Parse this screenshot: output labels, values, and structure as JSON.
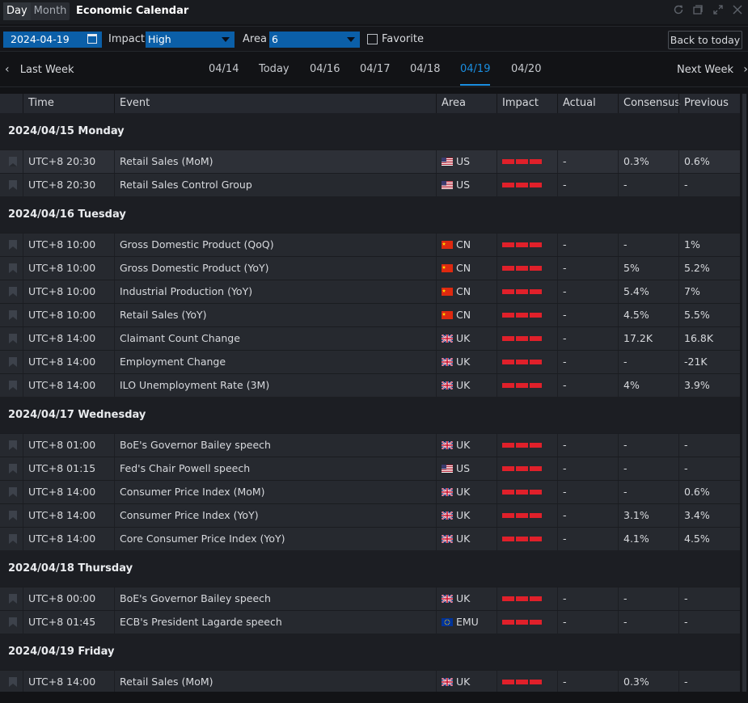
{
  "titlebar": {
    "view_day": "Day",
    "view_month": "Month",
    "title": "Economic Calendar"
  },
  "filters": {
    "date": "2024-04-19",
    "impact_label": "Impact",
    "impact_value": "High",
    "area_label": "Area",
    "area_value": "6",
    "favorite_label": "Favorite",
    "back_to_today": "Back to today"
  },
  "weeknav": {
    "prev": "Last Week",
    "next": "Next Week",
    "tabs": [
      "04/14",
      "Today",
      "04/16",
      "04/17",
      "04/18",
      "04/19",
      "04/20"
    ],
    "active_tab": "04/19"
  },
  "table": {
    "columns": [
      "Time",
      "Event",
      "Area",
      "Impact",
      "Actual",
      "Consensus",
      "Previous"
    ],
    "groups": [
      {
        "date": "2024/04/15 Monday",
        "rows": [
          {
            "time": "UTC+8 20:30",
            "event": "Retail Sales (MoM)",
            "area": "US",
            "flag": "us",
            "actual": "-",
            "consensus": "0.3%",
            "previous": "0.6%"
          },
          {
            "time": "UTC+8 20:30",
            "event": "Retail Sales Control Group",
            "area": "US",
            "flag": "us",
            "actual": "-",
            "consensus": "-",
            "previous": "-"
          }
        ]
      },
      {
        "date": "2024/04/16 Tuesday",
        "rows": [
          {
            "time": "UTC+8 10:00",
            "event": "Gross Domestic Product (QoQ)",
            "area": "CN",
            "flag": "cn",
            "actual": "-",
            "consensus": "-",
            "previous": "1%"
          },
          {
            "time": "UTC+8 10:00",
            "event": "Gross Domestic Product (YoY)",
            "area": "CN",
            "flag": "cn",
            "actual": "-",
            "consensus": "5%",
            "previous": "5.2%"
          },
          {
            "time": "UTC+8 10:00",
            "event": "Industrial Production (YoY)",
            "area": "CN",
            "flag": "cn",
            "actual": "-",
            "consensus": "5.4%",
            "previous": "7%"
          },
          {
            "time": "UTC+8 10:00",
            "event": "Retail Sales (YoY)",
            "area": "CN",
            "flag": "cn",
            "actual": "-",
            "consensus": "4.5%",
            "previous": "5.5%"
          },
          {
            "time": "UTC+8 14:00",
            "event": "Claimant Count Change",
            "area": "UK",
            "flag": "uk",
            "actual": "-",
            "consensus": "17.2K",
            "previous": "16.8K"
          },
          {
            "time": "UTC+8 14:00",
            "event": "Employment Change",
            "area": "UK",
            "flag": "uk",
            "actual": "-",
            "consensus": "-",
            "previous": "-21K"
          },
          {
            "time": "UTC+8 14:00",
            "event": "ILO Unemployment Rate (3M)",
            "area": "UK",
            "flag": "uk",
            "actual": "-",
            "consensus": "4%",
            "previous": "3.9%"
          }
        ]
      },
      {
        "date": "2024/04/17 Wednesday",
        "rows": [
          {
            "time": "UTC+8 01:00",
            "event": "BoE's Governor Bailey speech",
            "area": "UK",
            "flag": "uk",
            "actual": "-",
            "consensus": "-",
            "previous": "-"
          },
          {
            "time": "UTC+8 01:15",
            "event": "Fed's Chair Powell speech",
            "area": "US",
            "flag": "us",
            "actual": "-",
            "consensus": "-",
            "previous": "-"
          },
          {
            "time": "UTC+8 14:00",
            "event": "Consumer Price Index (MoM)",
            "area": "UK",
            "flag": "uk",
            "actual": "-",
            "consensus": "-",
            "previous": "0.6%"
          },
          {
            "time": "UTC+8 14:00",
            "event": "Consumer Price Index (YoY)",
            "area": "UK",
            "flag": "uk",
            "actual": "-",
            "consensus": "3.1%",
            "previous": "3.4%"
          },
          {
            "time": "UTC+8 14:00",
            "event": "Core Consumer Price Index (YoY)",
            "area": "UK",
            "flag": "uk",
            "actual": "-",
            "consensus": "4.1%",
            "previous": "4.5%"
          }
        ]
      },
      {
        "date": "2024/04/18 Thursday",
        "rows": [
          {
            "time": "UTC+8 00:00",
            "event": "BoE's Governor Bailey speech",
            "area": "UK",
            "flag": "uk",
            "actual": "-",
            "consensus": "-",
            "previous": "-"
          },
          {
            "time": "UTC+8 01:45",
            "event": "ECB's President Lagarde speech",
            "area": "EMU",
            "flag": "eu",
            "actual": "-",
            "consensus": "-",
            "previous": "-"
          }
        ]
      },
      {
        "date": "2024/04/19 Friday",
        "rows": [
          {
            "time": "UTC+8 14:00",
            "event": "Retail Sales (MoM)",
            "area": "UK",
            "flag": "uk",
            "actual": "-",
            "consensus": "0.3%",
            "previous": "-"
          }
        ]
      }
    ],
    "highlighted_row": "2024/04/15 Monday / 0"
  },
  "colors": {
    "accent": "#1a8ee0",
    "impact_high": "#e0202a",
    "select_bg": "#0b5fa8"
  },
  "icons": [
    "refresh-icon",
    "restore-icon",
    "expand-icon",
    "close-icon",
    "calendar-icon",
    "chevron-left-icon",
    "chevron-right-icon",
    "bookmark-icon",
    "caret-down-icon"
  ]
}
